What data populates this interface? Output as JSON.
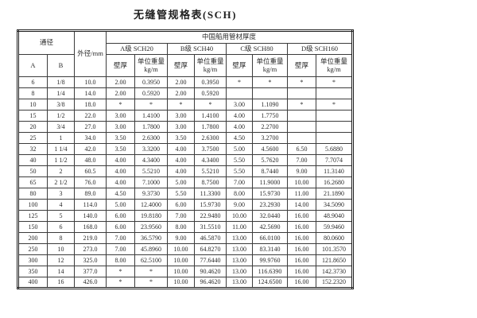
{
  "title": "无缝管规格表(SCH)",
  "table": {
    "header": {
      "nominal_diameter": "通径",
      "outer_diameter": "外径/mm",
      "group_title": "中国船用管材厚度",
      "grades": [
        "A级  SCH20",
        "B级  SCH40",
        "C级  SCH80",
        "D级  SCH160"
      ],
      "col_a": "A",
      "col_b": "B",
      "wall_thickness": "壁厚",
      "unit_weight_line1": "单位重量",
      "unit_weight_line2": "kg/m"
    },
    "rows": [
      [
        "6",
        "1/8",
        "10.0",
        "2.00",
        "0.3950",
        "2.00",
        "0.3950",
        "*",
        "*",
        "*",
        "*"
      ],
      [
        "8",
        "1/4",
        "14.0",
        "2.00",
        "0.5920",
        "2.00",
        "0.5920",
        "",
        "",
        "",
        ""
      ],
      [
        "10",
        "3/8",
        "18.0",
        "*",
        "*",
        "*",
        "*",
        "3.00",
        "1.1090",
        "*",
        "*"
      ],
      [
        "15",
        "1/2",
        "22.0",
        "3.00",
        "1.4100",
        "3.00",
        "1.4100",
        "4.00",
        "1.7750",
        "",
        ""
      ],
      [
        "20",
        "3/4",
        "27.0",
        "3.00",
        "1.7800",
        "3.00",
        "1.7800",
        "4.00",
        "2.2700",
        "",
        ""
      ],
      [
        "25",
        "1",
        "34.0",
        "3.50",
        "2.6300",
        "3.50",
        "2.6300",
        "4.50",
        "3.2700",
        "",
        ""
      ],
      [
        "32",
        "1 1/4",
        "42.0",
        "3.50",
        "3.3200",
        "4.00",
        "3.7500",
        "5.00",
        "4.5600",
        "6.50",
        "5.6880"
      ],
      [
        "40",
        "1 1/2",
        "48.0",
        "4.00",
        "4.3400",
        "4.00",
        "4.3400",
        "5.50",
        "5.7620",
        "7.00",
        "7.7074"
      ],
      [
        "50",
        "2",
        "60.5",
        "4.00",
        "5.5210",
        "4.00",
        "5.5210",
        "5.50",
        "8.7440",
        "9.00",
        "11.3140"
      ],
      [
        "65",
        "2 1/2",
        "76.0",
        "4.00",
        "7.1000",
        "5.00",
        "8.7500",
        "7.00",
        "11.9000",
        "10.00",
        "16.2680"
      ],
      [
        "80",
        "3",
        "89.0",
        "4.50",
        "9.3730",
        "5.50",
        "11.3300",
        "8.00",
        "15.9730",
        "11.00",
        "21.1890"
      ],
      [
        "100",
        "4",
        "114.0",
        "5.00",
        "12.4000",
        "6.00",
        "15.9730",
        "9.00",
        "23.2930",
        "14.00",
        "34.5090"
      ],
      [
        "125",
        "5",
        "140.0",
        "6.00",
        "19.8180",
        "7.00",
        "22.9480",
        "10.00",
        "32.0440",
        "16.00",
        "48.9040"
      ],
      [
        "150",
        "6",
        "168.0",
        "6.00",
        "23.9560",
        "8.00",
        "31.5510",
        "11.00",
        "42.5690",
        "16.00",
        "59.9460"
      ],
      [
        "200",
        "8",
        "219.0",
        "7.00",
        "36.5790",
        "9.00",
        "46.5870",
        "13.00",
        "66.0100",
        "16.00",
        "80.0600"
      ],
      [
        "250",
        "10",
        "273.0",
        "7.00",
        "45.8960",
        "10.00",
        "64.8270",
        "13.00",
        "83.3140",
        "16.00",
        "101.3570"
      ],
      [
        "300",
        "12",
        "325.0",
        "8.00",
        "62.5100",
        "10.00",
        "77.6440",
        "13.00",
        "99.9760",
        "16.00",
        "121.8650"
      ],
      [
        "350",
        "14",
        "377.0",
        "*",
        "*",
        "10.00",
        "90.4620",
        "13.00",
        "116.6390",
        "16.00",
        "142.3730"
      ],
      [
        "400",
        "16",
        "426.0",
        "*",
        "*",
        "10.00",
        "96.4620",
        "13.00",
        "124.6500",
        "16.00",
        "152.2320"
      ]
    ]
  }
}
